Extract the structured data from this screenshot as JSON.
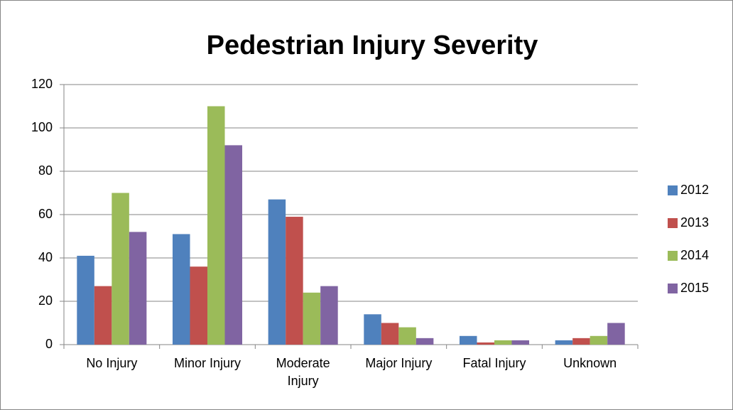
{
  "chart_data": {
    "type": "bar",
    "title": "Pedestrian Injury Severity",
    "categories": [
      "No Injury",
      "Minor Injury",
      "Moderate Injury",
      "Major Injury",
      "Fatal Injury",
      "Unknown"
    ],
    "series": [
      {
        "name": "2012",
        "color": "#4f81bd",
        "values": [
          41,
          51,
          67,
          14,
          4,
          2
        ]
      },
      {
        "name": "2013",
        "color": "#c0504d",
        "values": [
          27,
          36,
          59,
          10,
          1,
          3
        ]
      },
      {
        "name": "2014",
        "color": "#9bbb59",
        "values": [
          70,
          110,
          24,
          8,
          2,
          4
        ]
      },
      {
        "name": "2015",
        "color": "#8064a2",
        "values": [
          52,
          92,
          27,
          3,
          2,
          10
        ]
      }
    ],
    "ylim": [
      0,
      120
    ],
    "yticks": [
      0,
      20,
      40,
      60,
      80,
      100,
      120
    ],
    "grid": true,
    "legend": "right"
  }
}
